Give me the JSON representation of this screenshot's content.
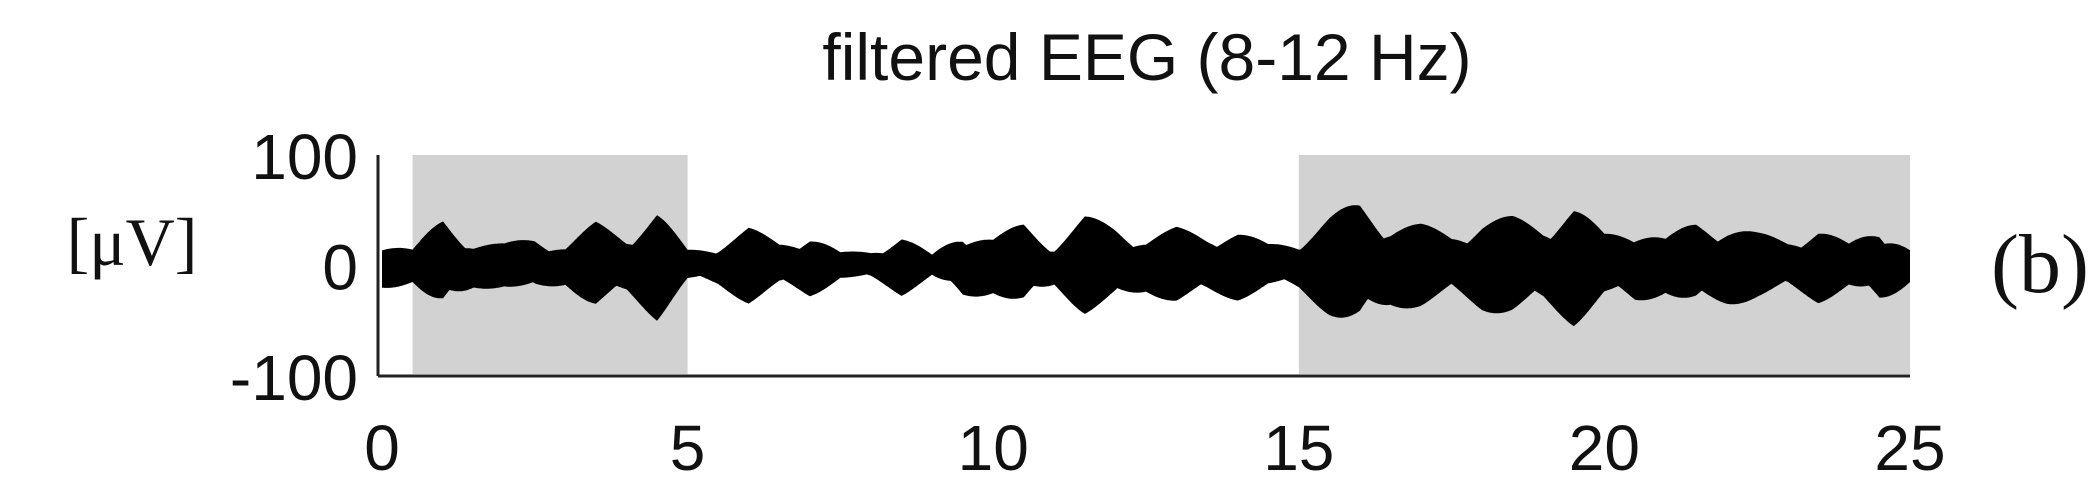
{
  "chart_data": {
    "type": "area",
    "title": "filtered EEG (8-12 Hz)",
    "ylabel": "[μV]",
    "xlabel": "",
    "panel_label": "(b)",
    "xlim": [
      0,
      25
    ],
    "ylim": [
      -100,
      100
    ],
    "x_ticks": [
      "0",
      "5",
      "10",
      "15",
      "20",
      "25"
    ],
    "y_ticks": [
      "100",
      "0",
      "-100"
    ],
    "grid": false,
    "legend": "none",
    "shaded_intervals": [
      [
        0.5,
        5.0
      ],
      [
        15.0,
        25.0
      ]
    ],
    "shade_color": "#d2d2d2",
    "signal_color": "#000000",
    "envelope": {
      "t": [
        0,
        0.5,
        1.0,
        1.5,
        2.0,
        2.5,
        3.0,
        3.5,
        4.0,
        4.5,
        5.0,
        5.5,
        6.0,
        6.5,
        7.0,
        7.5,
        8.0,
        8.5,
        9.0,
        9.5,
        10.0,
        10.5,
        11.0,
        11.5,
        12.0,
        12.5,
        13.0,
        13.5,
        14.0,
        14.5,
        15.0,
        15.5,
        16.0,
        16.5,
        17.0,
        17.5,
        18.0,
        18.5,
        19.0,
        19.5,
        20.0,
        20.5,
        21.0,
        21.5,
        22.0,
        22.5,
        23.0,
        23.5,
        24.0,
        24.5,
        25.0
      ],
      "amplitude": [
        25,
        15,
        45,
        22,
        20,
        28,
        18,
        40,
        30,
        50,
        15,
        20,
        35,
        22,
        30,
        12,
        15,
        28,
        10,
        35,
        25,
        40,
        20,
        45,
        38,
        25,
        35,
        30,
        32,
        20,
        25,
        45,
        60,
        40,
        38,
        30,
        42,
        45,
        40,
        55,
        30,
        38,
        25,
        42,
        38,
        30,
        25,
        35,
        20,
        40,
        15
      ]
    }
  }
}
